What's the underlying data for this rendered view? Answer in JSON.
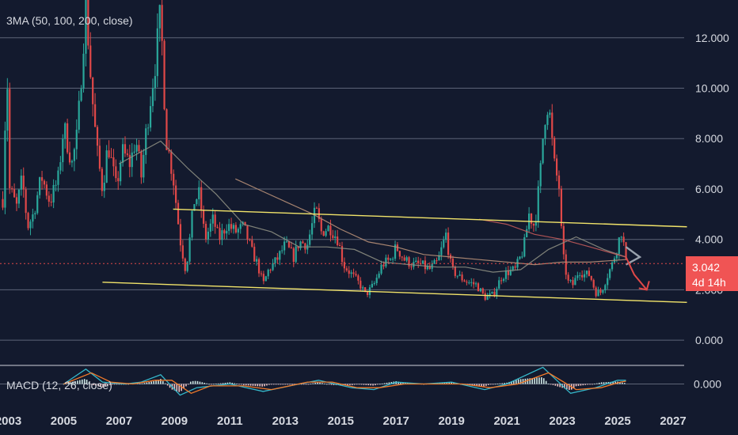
{
  "main_legend": "3MA (50, 100, 200, close)",
  "macd_legend": "MACD (12, 26, close)",
  "price_tag": {
    "value": "3.042",
    "countdown": "4d 14h",
    "color": "#f05454"
  },
  "colors": {
    "background": "#131a2e",
    "grid": "#9ba3b4",
    "up": "#2aa79b",
    "down": "#e04848",
    "ma50": "#8d8e82",
    "ma100": "#b89078",
    "ma200": "#c25a5a",
    "channel": "#f2e46a",
    "projection_gray": "#9aa3ae",
    "projection_red": "#e04848",
    "macd_line": "#35b7c9",
    "signal_line": "#f27a2a",
    "axis_text": "#d6d9e0"
  },
  "chart_data": [
    {
      "type": "candlestick",
      "title": "3MA (50, 100, 200, close)",
      "x_unit": "year",
      "xlim": [
        2002.7,
        2027.4
      ],
      "ylim": [
        -1.0,
        13.5
      ],
      "y_ticks": [
        "0.000",
        "2.000",
        "4.000",
        "6.000",
        "8.000",
        "10.000",
        "12.000"
      ],
      "y_tick_values": [
        0,
        2,
        4,
        6,
        8,
        10,
        12
      ],
      "x_ticks": [
        "2003",
        "2005",
        "2007",
        "2009",
        "2011",
        "2013",
        "2015",
        "2017",
        "2019",
        "2021",
        "2023",
        "2025",
        "2027"
      ],
      "x_tick_values": [
        2003,
        2005,
        2007,
        2009,
        2011,
        2013,
        2015,
        2017,
        2019,
        2021,
        2023,
        2025,
        2027
      ],
      "last_price": 3.042,
      "price_path": [
        [
          2002.8,
          5.6
        ],
        [
          2002.95,
          11.0
        ],
        [
          2003.05,
          6.0
        ],
        [
          2003.3,
          5.3
        ],
        [
          2003.5,
          6.4
        ],
        [
          2003.7,
          4.5
        ],
        [
          2003.9,
          5.0
        ],
        [
          2004.2,
          6.5
        ],
        [
          2004.5,
          5.5
        ],
        [
          2004.8,
          6.4
        ],
        [
          2005.0,
          8.5
        ],
        [
          2005.3,
          7.0
        ],
        [
          2005.5,
          8.2
        ],
        [
          2005.8,
          13.5
        ],
        [
          2006.0,
          10.0
        ],
        [
          2006.2,
          7.5
        ],
        [
          2006.4,
          6.0
        ],
        [
          2006.6,
          7.8
        ],
        [
          2006.9,
          6.0
        ],
        [
          2007.1,
          7.5
        ],
        [
          2007.4,
          7.0
        ],
        [
          2007.6,
          8.0
        ],
        [
          2007.8,
          6.5
        ],
        [
          2008.0,
          8.5
        ],
        [
          2008.3,
          11.0
        ],
        [
          2008.5,
          13.0
        ],
        [
          2008.7,
          8.0
        ],
        [
          2008.95,
          6.5
        ],
        [
          2009.2,
          4.0
        ],
        [
          2009.4,
          2.8
        ],
        [
          2009.5,
          3.5
        ],
        [
          2009.7,
          5.5
        ],
        [
          2009.9,
          5.8
        ],
        [
          2010.1,
          4.0
        ],
        [
          2010.4,
          4.8
        ],
        [
          2010.6,
          4.0
        ],
        [
          2010.9,
          4.6
        ],
        [
          2011.2,
          4.3
        ],
        [
          2011.5,
          4.5
        ],
        [
          2011.8,
          3.5
        ],
        [
          2012.0,
          3.0
        ],
        [
          2012.2,
          2.2
        ],
        [
          2012.4,
          2.8
        ],
        [
          2012.7,
          3.2
        ],
        [
          2013.0,
          3.8
        ],
        [
          2013.3,
          3.3
        ],
        [
          2013.5,
          3.9
        ],
        [
          2013.8,
          3.8
        ],
        [
          2014.1,
          5.2
        ],
        [
          2014.3,
          4.3
        ],
        [
          2014.6,
          4.5
        ],
        [
          2014.9,
          4.0
        ],
        [
          2015.1,
          3.0
        ],
        [
          2015.4,
          2.6
        ],
        [
          2015.7,
          2.2
        ],
        [
          2015.9,
          1.8
        ],
        [
          2016.2,
          2.2
        ],
        [
          2016.5,
          3.0
        ],
        [
          2016.8,
          3.2
        ],
        [
          2017.0,
          3.7
        ],
        [
          2017.3,
          3.2
        ],
        [
          2017.6,
          3.0
        ],
        [
          2017.9,
          3.0
        ],
        [
          2018.2,
          2.8
        ],
        [
          2018.5,
          3.1
        ],
        [
          2018.8,
          4.2
        ],
        [
          2019.0,
          2.8
        ],
        [
          2019.3,
          2.5
        ],
        [
          2019.6,
          2.3
        ],
        [
          2019.9,
          2.2
        ],
        [
          2020.2,
          1.7
        ],
        [
          2020.5,
          1.8
        ],
        [
          2020.8,
          2.5
        ],
        [
          2021.0,
          2.7
        ],
        [
          2021.3,
          2.8
        ],
        [
          2021.6,
          3.6
        ],
        [
          2021.8,
          5.0
        ],
        [
          2022.0,
          4.5
        ],
        [
          2022.2,
          6.5
        ],
        [
          2022.35,
          8.8
        ],
        [
          2022.5,
          9.5
        ],
        [
          2022.7,
          7.0
        ],
        [
          2022.9,
          6.0
        ],
        [
          2023.0,
          3.5
        ],
        [
          2023.2,
          2.3
        ],
        [
          2023.4,
          2.2
        ],
        [
          2023.6,
          2.8
        ],
        [
          2023.8,
          2.6
        ],
        [
          2024.0,
          2.6
        ],
        [
          2024.2,
          1.9
        ],
        [
          2024.4,
          1.9
        ],
        [
          2024.6,
          2.5
        ],
        [
          2024.8,
          3.0
        ],
        [
          2025.0,
          3.8
        ],
        [
          2025.15,
          4.4
        ],
        [
          2025.3,
          3.042
        ]
      ],
      "moving_averages": [
        {
          "name": "MA50",
          "color": "#8d8e82",
          "points": [
            [
              2007.0,
              7.0
            ],
            [
              2008.5,
              7.9
            ],
            [
              2009.5,
              6.8
            ],
            [
              2010.5,
              5.8
            ],
            [
              2011.5,
              4.6
            ],
            [
              2012.5,
              4.3
            ],
            [
              2013.5,
              3.7
            ],
            [
              2014.5,
              3.7
            ],
            [
              2015.5,
              3.6
            ],
            [
              2016.5,
              3.1
            ],
            [
              2017.5,
              3.0
            ],
            [
              2018.5,
              2.9
            ],
            [
              2019.5,
              2.9
            ],
            [
              2020.5,
              2.7
            ],
            [
              2021.5,
              2.8
            ],
            [
              2022.5,
              3.6
            ],
            [
              2023.5,
              4.1
            ],
            [
              2024.5,
              3.6
            ],
            [
              2025.3,
              3.3
            ]
          ]
        },
        {
          "name": "MA100",
          "color": "#b89078",
          "points": [
            [
              2011.2,
              6.4
            ],
            [
              2012.0,
              6.0
            ],
            [
              2013.0,
              5.5
            ],
            [
              2014.0,
              5.0
            ],
            [
              2015.0,
              4.4
            ],
            [
              2016.0,
              3.9
            ],
            [
              2017.0,
              3.7
            ],
            [
              2018.0,
              3.4
            ],
            [
              2019.0,
              3.3
            ],
            [
              2020.0,
              3.2
            ],
            [
              2021.0,
              3.1
            ],
            [
              2022.0,
              3.0
            ],
            [
              2023.0,
              3.1
            ],
            [
              2024.0,
              3.1
            ],
            [
              2025.3,
              3.2
            ]
          ]
        },
        {
          "name": "MA200",
          "color": "#c25a5a",
          "points": [
            [
              2020.0,
              4.8
            ],
            [
              2021.0,
              4.6
            ],
            [
              2022.0,
              4.2
            ],
            [
              2023.0,
              4.0
            ],
            [
              2024.0,
              3.7
            ],
            [
              2025.3,
              3.3
            ]
          ]
        }
      ],
      "trend_channel": [
        {
          "name": "upper",
          "points": [
            [
              2008.95,
              5.2
            ],
            [
              2027.5,
              4.5
            ]
          ]
        },
        {
          "name": "lower",
          "points": [
            [
              2006.4,
              2.3
            ],
            [
              2027.5,
              1.5
            ]
          ]
        }
      ],
      "projection": [
        {
          "name": "gray",
          "points": [
            [
              2025.3,
              3.0
            ],
            [
              2025.8,
              3.3
            ],
            [
              2025.3,
              3.7
            ]
          ]
        },
        {
          "name": "red",
          "points": [
            [
              2025.3,
              3.3
            ],
            [
              2025.6,
              2.6
            ],
            [
              2026.05,
              2.0
            ]
          ]
        }
      ]
    },
    {
      "type": "line",
      "title": "MACD (12, 26, close)",
      "ylim": [
        -1.0,
        1.0
      ],
      "y_ticks": [
        "0.000"
      ],
      "y_tick_values": [
        0
      ],
      "series": [
        {
          "name": "MACD",
          "color": "#35b7c9",
          "values": [
            [
              2005.0,
              0.0
            ],
            [
              2005.8,
              0.8
            ],
            [
              2006.4,
              0.1
            ],
            [
              2007.2,
              0.0
            ],
            [
              2007.8,
              0.1
            ],
            [
              2008.5,
              0.5
            ],
            [
              2009.2,
              -0.6
            ],
            [
              2009.8,
              -0.2
            ],
            [
              2011.0,
              0.0
            ],
            [
              2012.2,
              -0.4
            ],
            [
              2013.5,
              0.0
            ],
            [
              2014.2,
              0.2
            ],
            [
              2015.4,
              -0.2
            ],
            [
              2016.2,
              -0.3
            ],
            [
              2017.0,
              0.1
            ],
            [
              2018.0,
              0.0
            ],
            [
              2019.0,
              0.1
            ],
            [
              2020.2,
              -0.3
            ],
            [
              2021.0,
              0.0
            ],
            [
              2022.3,
              0.9
            ],
            [
              2023.3,
              -0.5
            ],
            [
              2024.2,
              -0.2
            ],
            [
              2025.0,
              0.2
            ],
            [
              2025.3,
              0.2
            ]
          ]
        },
        {
          "name": "Signal",
          "color": "#f27a2a",
          "values": [
            [
              2005.0,
              0.0
            ],
            [
              2006.0,
              0.6
            ],
            [
              2006.7,
              0.1
            ],
            [
              2007.5,
              0.0
            ],
            [
              2008.3,
              0.2
            ],
            [
              2008.9,
              0.2
            ],
            [
              2009.6,
              -0.5
            ],
            [
              2010.3,
              -0.1
            ],
            [
              2011.5,
              -0.1
            ],
            [
              2012.5,
              -0.3
            ],
            [
              2013.8,
              0.1
            ],
            [
              2014.7,
              0.1
            ],
            [
              2015.6,
              -0.2
            ],
            [
              2016.4,
              -0.2
            ],
            [
              2017.3,
              0.0
            ],
            [
              2018.2,
              0.0
            ],
            [
              2019.4,
              0.0
            ],
            [
              2020.4,
              -0.2
            ],
            [
              2021.4,
              0.0
            ],
            [
              2022.5,
              0.6
            ],
            [
              2023.5,
              -0.3
            ],
            [
              2024.4,
              -0.2
            ],
            [
              2025.1,
              0.1
            ],
            [
              2025.3,
              0.15
            ]
          ]
        }
      ],
      "histogram_x_range": [
        2005.0,
        2025.3
      ]
    }
  ]
}
